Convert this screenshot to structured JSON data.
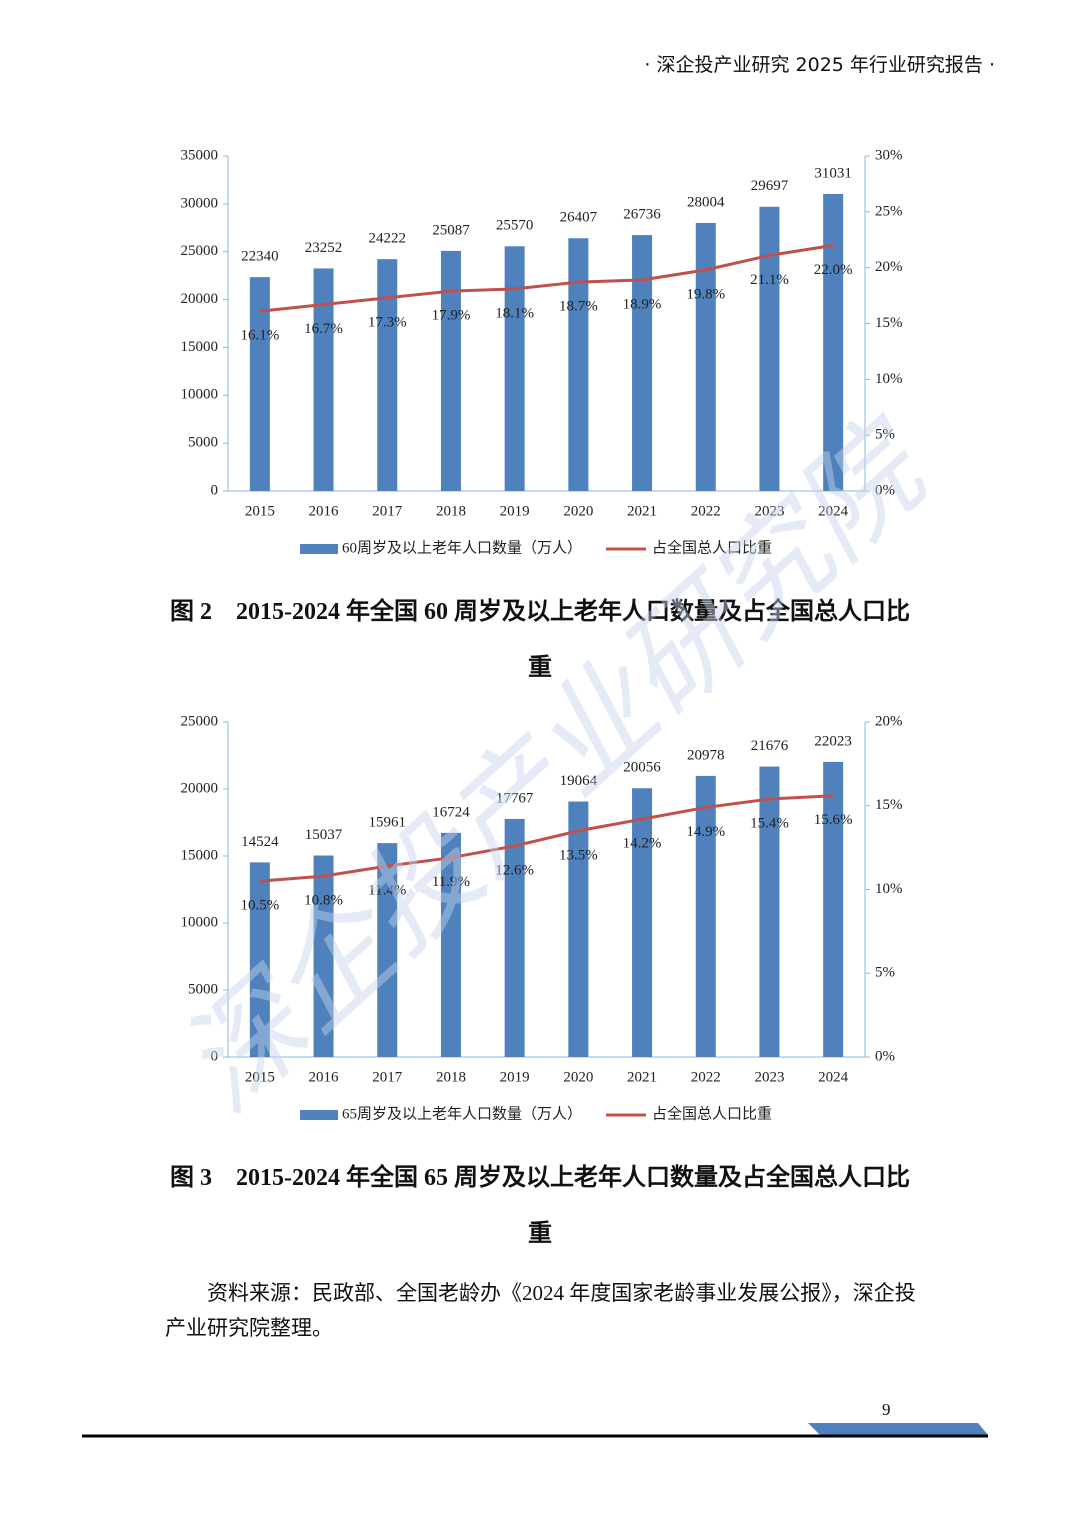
{
  "header": "· 深企投产业研究 2025 年行业研究报告 ·",
  "watermark": "深企投产业研究院",
  "chart_data": [
    {
      "type": "bar",
      "caption": "图 2　2015-2024 年全国 60 周岁及以上老年人口数量及占全国总人口比重",
      "categories": [
        "2015",
        "2016",
        "2017",
        "2018",
        "2019",
        "2020",
        "2021",
        "2022",
        "2023",
        "2024"
      ],
      "series": [
        {
          "name": "60周岁及以上老年人口数量（万人）",
          "color": "#4f81bd",
          "type": "bar",
          "values": [
            22340,
            23252,
            24222,
            25087,
            25570,
            26407,
            26736,
            28004,
            29697,
            31031
          ]
        },
        {
          "name": "占全国总人口比重",
          "color": "#c0504d",
          "type": "line",
          "axis": "y2",
          "values": [
            16.1,
            16.7,
            17.3,
            17.9,
            18.1,
            18.7,
            18.9,
            19.8,
            21.1,
            22.0
          ],
          "value_labels": [
            "16.1%",
            "16.7%",
            "17.3%",
            "17.9%",
            "18.1%",
            "18.7%",
            "18.9%",
            "19.8%",
            "21.1%",
            "22.0%"
          ]
        }
      ],
      "ylim": [
        0,
        35000
      ],
      "yticks": [
        0,
        5000,
        10000,
        15000,
        20000,
        25000,
        30000,
        35000
      ],
      "y2lim": [
        0,
        30
      ],
      "y2ticks": [
        {
          "value": 0,
          "label": "0%"
        },
        {
          "value": 5,
          "label": "5%"
        },
        {
          "value": 10,
          "label": "10%"
        },
        {
          "value": 15,
          "label": "15%"
        },
        {
          "value": 20,
          "label": "20%"
        },
        {
          "value": 25,
          "label": "25%"
        },
        {
          "value": 30,
          "label": "30%"
        }
      ],
      "legend": "bottom"
    },
    {
      "type": "bar",
      "caption": "图 3　2015-2024 年全国 65 周岁及以上老年人口数量及占全国总人口比重",
      "categories": [
        "2015",
        "2016",
        "2017",
        "2018",
        "2019",
        "2020",
        "2021",
        "2022",
        "2023",
        "2024"
      ],
      "series": [
        {
          "name": "65周岁及以上老年人口数量（万人）",
          "color": "#4f81bd",
          "type": "bar",
          "values": [
            14524,
            15037,
            15961,
            16724,
            17767,
            19064,
            20056,
            20978,
            21676,
            22023
          ]
        },
        {
          "name": "占全国总人口比重",
          "color": "#c0504d",
          "type": "line",
          "axis": "y2",
          "values": [
            10.5,
            10.8,
            11.4,
            11.9,
            12.6,
            13.5,
            14.2,
            14.9,
            15.4,
            15.6
          ],
          "value_labels": [
            "10.5%",
            "10.8%",
            "11.4%",
            "11.9%",
            "12.6%",
            "13.5%",
            "14.2%",
            "14.9%",
            "15.4%",
            "15.6%"
          ]
        }
      ],
      "ylim": [
        0,
        25000
      ],
      "yticks": [
        0,
        5000,
        10000,
        15000,
        20000,
        25000
      ],
      "y2lim": [
        0,
        20
      ],
      "y2ticks": [
        {
          "value": 0,
          "label": "0%"
        },
        {
          "value": 5,
          "label": "5%"
        },
        {
          "value": 10,
          "label": "10%"
        },
        {
          "value": 15,
          "label": "15%"
        },
        {
          "value": 20,
          "label": "20%"
        }
      ],
      "legend": "bottom"
    }
  ],
  "source": "资料来源：民政部、全国老龄办《2024 年度国家老龄事业发展公报》，深企投产业研究院整理。",
  "page_number": 9
}
